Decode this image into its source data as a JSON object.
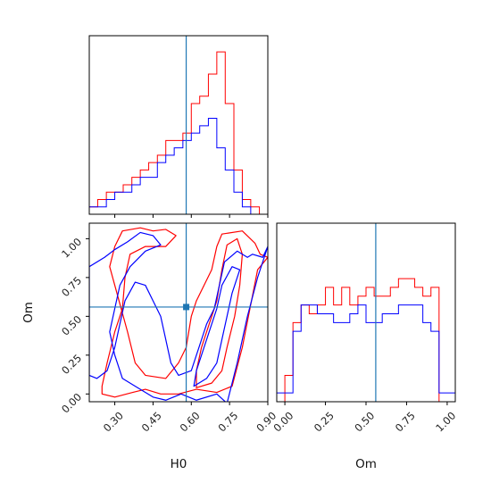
{
  "chart_data": [
    {
      "type": "histogram",
      "panel": "H0 marginal",
      "xlim": [
        0.2,
        0.9
      ],
      "truth": 0.58,
      "truth_color": "#1f77b4",
      "bin_edges": [
        0.2,
        0.233,
        0.267,
        0.3,
        0.333,
        0.367,
        0.4,
        0.433,
        0.467,
        0.5,
        0.533,
        0.567,
        0.6,
        0.633,
        0.667,
        0.7,
        0.733,
        0.767,
        0.8,
        0.833,
        0.867,
        0.9
      ],
      "series": [
        {
          "color": "#ff0000",
          "values": [
            1,
            2,
            3,
            3,
            4,
            5,
            6,
            7,
            8,
            10,
            10,
            11,
            15,
            16,
            19,
            22,
            15,
            6,
            2,
            1,
            0
          ]
        },
        {
          "color": "#0000ff",
          "values": [
            1,
            1,
            2,
            3,
            3,
            4,
            5,
            5,
            7,
            8,
            9,
            10,
            11,
            12,
            13,
            9,
            6,
            3,
            1,
            0,
            0
          ]
        }
      ]
    },
    {
      "type": "contour",
      "panel": "H0 vs Om",
      "xlabel": "H0",
      "ylabel": "Om",
      "xlim": [
        0.2,
        0.9
      ],
      "ylim": [
        -0.05,
        1.1
      ],
      "xticks": [
        "0.30",
        "0.45",
        "0.60",
        "0.75",
        "0.90"
      ],
      "xtick_values": [
        0.3,
        0.45,
        0.6,
        0.75,
        0.9
      ],
      "yticks": [
        "0.00",
        "0.25",
        "0.50",
        "0.75",
        "1.00"
      ],
      "ytick_values": [
        0,
        0.25,
        0.5,
        0.75,
        1.0
      ],
      "truth": {
        "x": 0.58,
        "y": 0.56
      },
      "series": [
        {
          "color": "#ff0000",
          "contours": [
            [
              [
                0.25,
                0.0
              ],
              [
                0.3,
                -0.02
              ],
              [
                0.37,
                0.01
              ],
              [
                0.42,
                0.03
              ],
              [
                0.48,
                0.0
              ],
              [
                0.55,
                0.0
              ],
              [
                0.62,
                0.03
              ],
              [
                0.7,
                0.01
              ],
              [
                0.76,
                0.05
              ],
              [
                0.8,
                0.3
              ],
              [
                0.83,
                0.55
              ],
              [
                0.86,
                0.8
              ],
              [
                0.9,
                0.88
              ],
              [
                0.87,
                0.9
              ],
              [
                0.85,
                0.97
              ],
              [
                0.8,
                1.05
              ],
              [
                0.72,
                1.03
              ],
              [
                0.7,
                0.95
              ],
              [
                0.68,
                0.8
              ],
              [
                0.62,
                0.6
              ],
              [
                0.6,
                0.5
              ],
              [
                0.58,
                0.3
              ],
              [
                0.55,
                0.2
              ],
              [
                0.5,
                0.1
              ],
              [
                0.42,
                0.12
              ],
              [
                0.38,
                0.2
              ],
              [
                0.35,
                0.4
              ],
              [
                0.32,
                0.58
              ],
              [
                0.3,
                0.7
              ],
              [
                0.28,
                0.82
              ],
              [
                0.3,
                0.95
              ],
              [
                0.33,
                1.05
              ],
              [
                0.4,
                1.07
              ],
              [
                0.45,
                1.05
              ],
              [
                0.5,
                1.06
              ],
              [
                0.54,
                1.02
              ],
              [
                0.5,
                0.95
              ],
              [
                0.42,
                0.95
              ],
              [
                0.36,
                0.9
              ],
              [
                0.34,
                0.75
              ],
              [
                0.33,
                0.55
              ],
              [
                0.3,
                0.4
              ],
              [
                0.27,
                0.2
              ],
              [
                0.25,
                0.05
              ]
            ],
            [
              [
                0.62,
                0.04
              ],
              [
                0.68,
                0.07
              ],
              [
                0.72,
                0.15
              ],
              [
                0.74,
                0.3
              ],
              [
                0.77,
                0.5
              ],
              [
                0.79,
                0.7
              ],
              [
                0.8,
                0.9
              ],
              [
                0.78,
                1.0
              ],
              [
                0.74,
                0.96
              ],
              [
                0.72,
                0.8
              ],
              [
                0.7,
                0.6
              ],
              [
                0.67,
                0.45
              ],
              [
                0.64,
                0.3
              ],
              [
                0.62,
                0.15
              ]
            ]
          ]
        },
        {
          "color": "#0000ff",
          "contours": [
            [
              [
                0.2,
                0.82
              ],
              [
                0.26,
                0.88
              ],
              [
                0.3,
                0.93
              ],
              [
                0.35,
                0.98
              ],
              [
                0.4,
                1.04
              ],
              [
                0.45,
                1.02
              ],
              [
                0.48,
                0.96
              ],
              [
                0.42,
                0.92
              ],
              [
                0.36,
                0.82
              ],
              [
                0.32,
                0.7
              ],
              [
                0.3,
                0.55
              ],
              [
                0.28,
                0.4
              ],
              [
                0.3,
                0.25
              ],
              [
                0.33,
                0.1
              ],
              [
                0.38,
                0.05
              ],
              [
                0.45,
                -0.02
              ],
              [
                0.5,
                -0.04
              ],
              [
                0.56,
                0.0
              ],
              [
                0.62,
                -0.04
              ],
              [
                0.7,
                0.0
              ],
              [
                0.74,
                -0.06
              ],
              [
                0.78,
                0.2
              ],
              [
                0.82,
                0.5
              ],
              [
                0.86,
                0.75
              ],
              [
                0.9,
                0.95
              ],
              [
                0.88,
                0.88
              ],
              [
                0.84,
                0.9
              ],
              [
                0.82,
                0.88
              ],
              [
                0.78,
                0.92
              ],
              [
                0.73,
                0.85
              ],
              [
                0.71,
                0.7
              ],
              [
                0.69,
                0.55
              ],
              [
                0.66,
                0.45
              ],
              [
                0.63,
                0.3
              ],
              [
                0.6,
                0.15
              ],
              [
                0.55,
                0.12
              ],
              [
                0.52,
                0.2
              ],
              [
                0.5,
                0.35
              ],
              [
                0.48,
                0.5
              ],
              [
                0.45,
                0.6
              ],
              [
                0.42,
                0.7
              ],
              [
                0.38,
                0.72
              ],
              [
                0.34,
                0.6
              ],
              [
                0.32,
                0.45
              ],
              [
                0.3,
                0.3
              ],
              [
                0.27,
                0.15
              ],
              [
                0.23,
                0.1
              ],
              [
                0.2,
                0.12
              ]
            ],
            [
              [
                0.61,
                0.05
              ],
              [
                0.66,
                0.1
              ],
              [
                0.7,
                0.2
              ],
              [
                0.72,
                0.35
              ],
              [
                0.74,
                0.5
              ],
              [
                0.76,
                0.65
              ],
              [
                0.79,
                0.8
              ],
              [
                0.76,
                0.82
              ],
              [
                0.72,
                0.7
              ],
              [
                0.7,
                0.55
              ],
              [
                0.67,
                0.4
              ],
              [
                0.64,
                0.25
              ],
              [
                0.62,
                0.15
              ]
            ]
          ]
        }
      ]
    },
    {
      "type": "histogram",
      "panel": "Om marginal",
      "xlabel": "Om",
      "xlim": [
        -0.05,
        1.05
      ],
      "xticks": [
        "0.00",
        "0.25",
        "0.50",
        "0.75",
        "1.00"
      ],
      "xtick_values": [
        0,
        0.25,
        0.5,
        0.75,
        1.0
      ],
      "truth": 0.56,
      "truth_color": "#1f77b4",
      "bin_edges": [
        -0.05,
        0.0,
        0.05,
        0.1,
        0.15,
        0.2,
        0.25,
        0.3,
        0.35,
        0.4,
        0.45,
        0.5,
        0.55,
        0.6,
        0.65,
        0.7,
        0.75,
        0.8,
        0.85,
        0.9,
        0.95,
        1.0,
        1.05
      ],
      "series": [
        {
          "color": "#ff0000",
          "values": [
            0,
            3,
            9,
            11,
            10,
            11,
            13,
            11,
            13,
            11,
            12,
            13,
            12,
            12,
            13,
            14,
            14,
            13,
            12,
            13,
            0,
            0
          ]
        },
        {
          "color": "#0000ff",
          "values": [
            1,
            1,
            8,
            11,
            11,
            10,
            10,
            9,
            9,
            10,
            11,
            9,
            9,
            10,
            10,
            11,
            11,
            11,
            9,
            8,
            1,
            1
          ]
        }
      ]
    }
  ]
}
